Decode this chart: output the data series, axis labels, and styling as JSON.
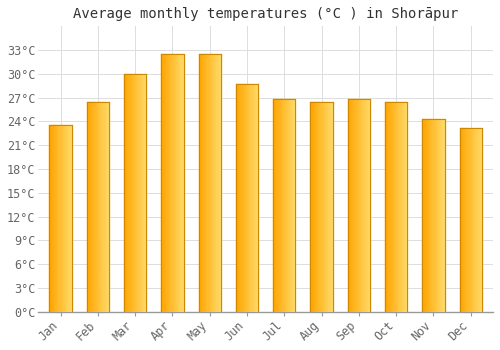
{
  "title": "Average monthly temperatures (°C ) in Shorāpur",
  "months": [
    "Jan",
    "Feb",
    "Mar",
    "Apr",
    "May",
    "Jun",
    "Jul",
    "Aug",
    "Sep",
    "Oct",
    "Nov",
    "Dec"
  ],
  "temperatures": [
    23.5,
    26.5,
    30.0,
    32.5,
    32.5,
    28.7,
    26.8,
    26.5,
    26.8,
    26.5,
    24.3,
    23.2
  ],
  "bar_color_left": "#FFA500",
  "bar_color_right": "#FFD966",
  "background_color": "#FFFFFF",
  "grid_color": "#DDDDDD",
  "ylim": [
    0,
    36
  ],
  "yticks": [
    0,
    3,
    6,
    9,
    12,
    15,
    18,
    21,
    24,
    27,
    30,
    33
  ],
  "title_fontsize": 10,
  "tick_fontsize": 8.5,
  "font_family": "monospace"
}
